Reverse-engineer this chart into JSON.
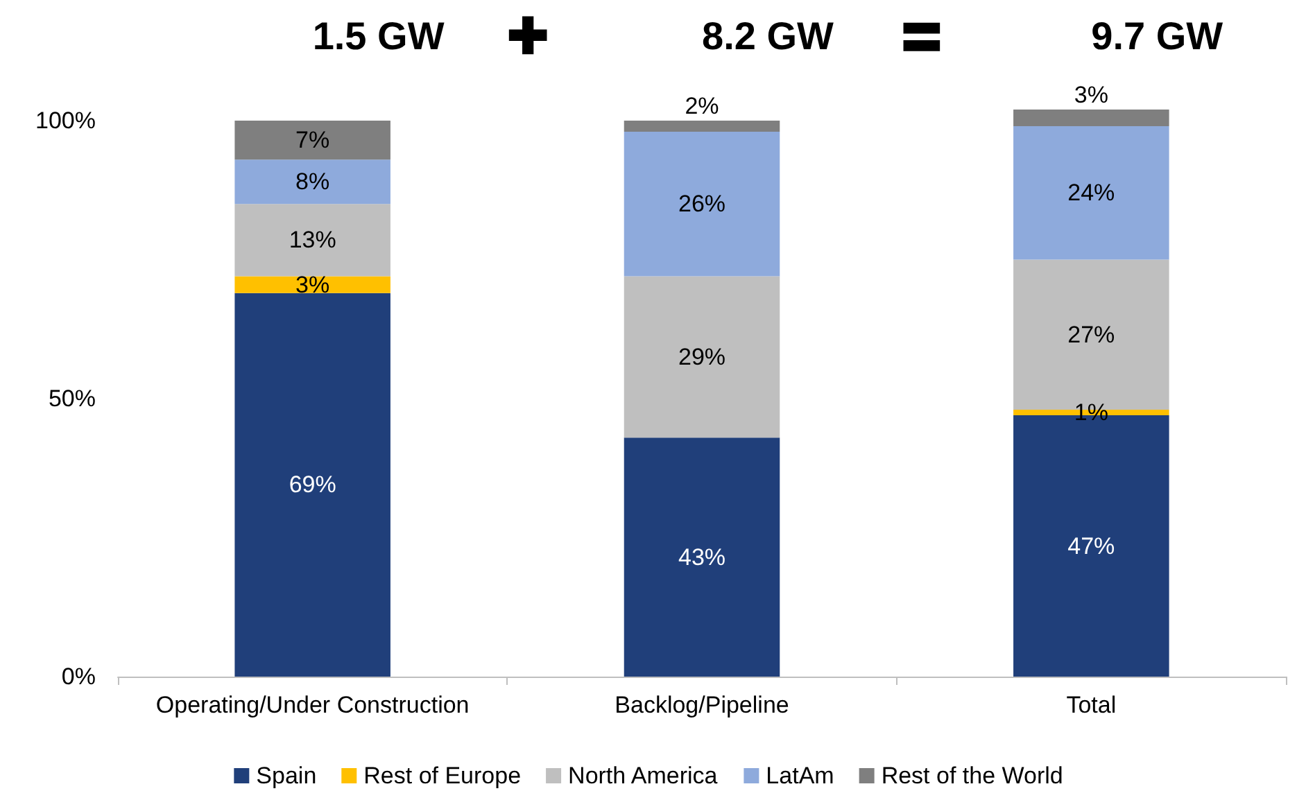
{
  "chart_data": {
    "type": "bar",
    "stacked": true,
    "categories": [
      "Operating/Under Construction",
      "Backlog/Pipeline",
      "Total"
    ],
    "series": [
      {
        "name": "Spain",
        "color": "#203f7a",
        "values": [
          69,
          43,
          47
        ],
        "value_labels": [
          "69%",
          "43%",
          "47%"
        ]
      },
      {
        "name": "Rest of Europe",
        "color": "#ffc000",
        "values": [
          3,
          0,
          1
        ],
        "value_labels": [
          "3%",
          null,
          "1%"
        ]
      },
      {
        "name": "North America",
        "color": "#bfbfbf",
        "values": [
          13,
          29,
          27
        ],
        "value_labels": [
          "13%",
          "29%",
          "27%"
        ]
      },
      {
        "name": "LatAm",
        "color": "#8eaadc",
        "values": [
          8,
          26,
          24
        ],
        "value_labels": [
          "8%",
          "26%",
          "24%"
        ]
      },
      {
        "name": "Rest of the World",
        "color": "#7f7f7f",
        "values": [
          7,
          2,
          3
        ],
        "value_labels": [
          "7%",
          "2%",
          "3%"
        ]
      }
    ],
    "ylim": [
      0,
      102
    ],
    "yticks": [
      {
        "value": 0,
        "label": "0%"
      },
      {
        "value": 50,
        "label": "50%"
      },
      {
        "value": 100,
        "label": "100%"
      }
    ],
    "annotations": [
      "1.5 GW",
      "✚",
      "8.2 GW",
      "〓",
      "9.7 GW"
    ],
    "grid": false,
    "legend": "bottom"
  }
}
